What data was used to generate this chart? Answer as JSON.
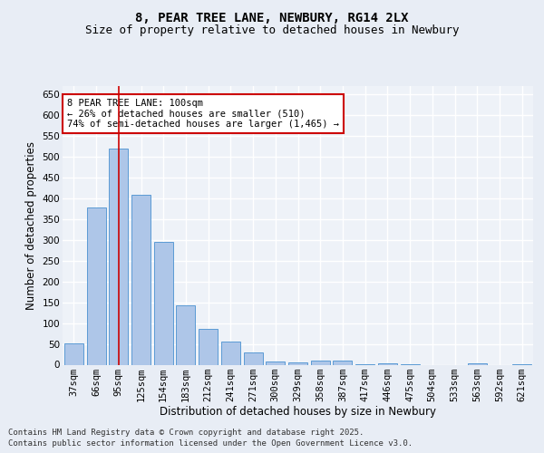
{
  "title": "8, PEAR TREE LANE, NEWBURY, RG14 2LX",
  "subtitle": "Size of property relative to detached houses in Newbury",
  "xlabel": "Distribution of detached houses by size in Newbury",
  "ylabel": "Number of detached properties",
  "categories": [
    "37sqm",
    "66sqm",
    "95sqm",
    "125sqm",
    "154sqm",
    "183sqm",
    "212sqm",
    "241sqm",
    "271sqm",
    "300sqm",
    "329sqm",
    "358sqm",
    "387sqm",
    "417sqm",
    "446sqm",
    "475sqm",
    "504sqm",
    "533sqm",
    "563sqm",
    "592sqm",
    "621sqm"
  ],
  "values": [
    52,
    378,
    519,
    408,
    295,
    143,
    85,
    55,
    30,
    8,
    6,
    10,
    10,
    2,
    4,
    1,
    0,
    0,
    3,
    0,
    1
  ],
  "bar_color": "#aec6e8",
  "bar_edge_color": "#5b9bd5",
  "vline_x_index": 2,
  "vline_color": "#cc0000",
  "annotation_text": "8 PEAR TREE LANE: 100sqm\n← 26% of detached houses are smaller (510)\n74% of semi-detached houses are larger (1,465) →",
  "annotation_box_edgecolor": "#cc0000",
  "annotation_box_facecolor": "#ffffff",
  "ylim": [
    0,
    670
  ],
  "yticks": [
    0,
    50,
    100,
    150,
    200,
    250,
    300,
    350,
    400,
    450,
    500,
    550,
    600,
    650
  ],
  "bg_color": "#e8edf5",
  "plot_bg_color": "#eef2f8",
  "grid_color": "#ffffff",
  "footer_line1": "Contains HM Land Registry data © Crown copyright and database right 2025.",
  "footer_line2": "Contains public sector information licensed under the Open Government Licence v3.0.",
  "title_fontsize": 10,
  "subtitle_fontsize": 9,
  "axis_label_fontsize": 8.5,
  "tick_fontsize": 7.5,
  "annotation_fontsize": 7.5,
  "footer_fontsize": 6.5
}
